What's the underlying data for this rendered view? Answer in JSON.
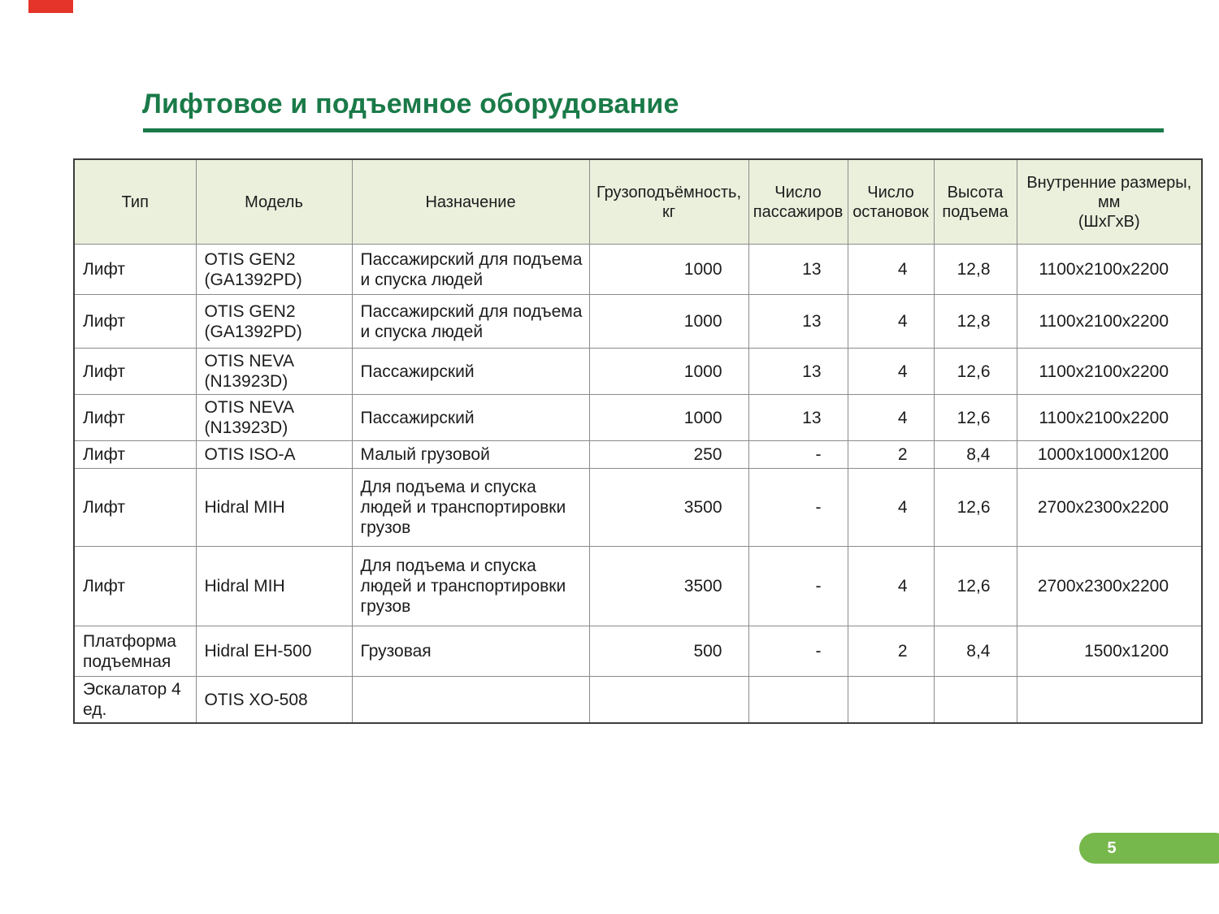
{
  "page": {
    "number": "5",
    "colors": {
      "title_green": "#1a7a48",
      "rule_green": "#1a7a48",
      "badge_green": "#77b84c",
      "header_row_bg": "#ebf0dd",
      "red_marker": "#e5352b"
    }
  },
  "title": "Лифтовое и подъемное оборудование",
  "table": {
    "columns": [
      {
        "label": "Тип",
        "align": "left"
      },
      {
        "label": "Модель",
        "align": "left"
      },
      {
        "label": "Назначение",
        "align": "left"
      },
      {
        "label": "Грузоподъёмность,\nкг",
        "align": "right"
      },
      {
        "label": "Число\nпассажиров",
        "align": "right"
      },
      {
        "label": "Число\nостановок",
        "align": "right"
      },
      {
        "label": "Высота\nподъема",
        "align": "right"
      },
      {
        "label": "Внутренние размеры,\nмм\n(ШхГхВ)",
        "align": "right"
      }
    ],
    "rows": [
      [
        "Лифт",
        "OTIS GEN2 (GA1392PD)",
        "Пассажирский для подъема и спуска людей",
        "1000",
        "13",
        "4",
        "12,8",
        "1100х2100х2200"
      ],
      [
        "Лифт",
        "OTIS GEN2 (GA1392PD)",
        "Пассажирский для подъема и спуска людей",
        "1000",
        "13",
        "4",
        "12,8",
        "1100х2100х2200"
      ],
      [
        "Лифт",
        "OTIS NEVA (N13923D)",
        "Пассажирский",
        "1000",
        "13",
        "4",
        "12,6",
        "1100х2100х2200"
      ],
      [
        "Лифт",
        "OTIS NEVA (N13923D)",
        "Пассажирский",
        "1000",
        "13",
        "4",
        "12,6",
        "1100х2100х2200"
      ],
      [
        "Лифт",
        "OTIS ISO-A",
        "Малый грузовой",
        "250",
        "-",
        "2",
        "8,4",
        "1000х1000х1200"
      ],
      [
        "Лифт",
        "Hidral MIH",
        "Для подъема и спуска людей и транспортировки грузов",
        "3500",
        "-",
        "4",
        "12,6",
        "2700х2300х2200"
      ],
      [
        "Лифт",
        "Hidral MIH",
        "Для подъема и спуска людей и транспортировки грузов",
        "3500",
        "-",
        "4",
        "12,6",
        "2700х2300х2200"
      ],
      [
        "Платформа подъемная",
        "Hidral EH-500",
        "Грузовая",
        "500",
        "-",
        "2",
        "8,4",
        "1500х1200"
      ],
      [
        "Эскалатор 4 ед.",
        "OTIS XO-508",
        "",
        "",
        "",
        "",
        "",
        ""
      ]
    ]
  }
}
